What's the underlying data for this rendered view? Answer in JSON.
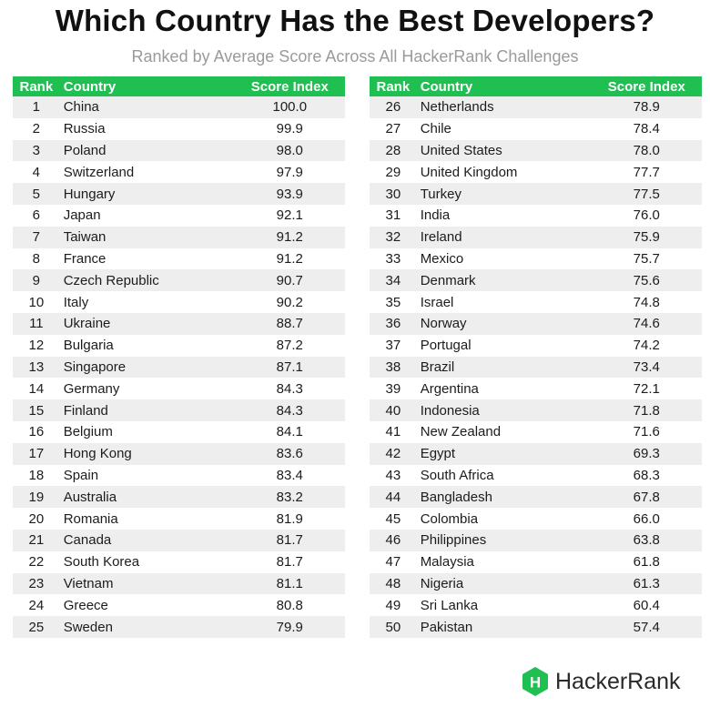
{
  "chart_data": {
    "type": "table",
    "title": "Which Country Has the Best Developers?",
    "subtitle": "Ranked by Average Score Across All HackerRank Challenges",
    "columns": [
      "Rank",
      "Country",
      "Score Index"
    ],
    "rows": [
      [
        1,
        "China",
        "100.0"
      ],
      [
        2,
        "Russia",
        "99.9"
      ],
      [
        3,
        "Poland",
        "98.0"
      ],
      [
        4,
        "Switzerland",
        "97.9"
      ],
      [
        5,
        "Hungary",
        "93.9"
      ],
      [
        6,
        "Japan",
        "92.1"
      ],
      [
        7,
        "Taiwan",
        "91.2"
      ],
      [
        8,
        "France",
        "91.2"
      ],
      [
        9,
        "Czech Republic",
        "90.7"
      ],
      [
        10,
        "Italy",
        "90.2"
      ],
      [
        11,
        "Ukraine",
        "88.7"
      ],
      [
        12,
        "Bulgaria",
        "87.2"
      ],
      [
        13,
        "Singapore",
        "87.1"
      ],
      [
        14,
        "Germany",
        "84.3"
      ],
      [
        15,
        "Finland",
        "84.3"
      ],
      [
        16,
        "Belgium",
        "84.1"
      ],
      [
        17,
        "Hong Kong",
        "83.6"
      ],
      [
        18,
        "Spain",
        "83.4"
      ],
      [
        19,
        "Australia",
        "83.2"
      ],
      [
        20,
        "Romania",
        "81.9"
      ],
      [
        21,
        "Canada",
        "81.7"
      ],
      [
        22,
        "South Korea",
        "81.7"
      ],
      [
        23,
        "Vietnam",
        "81.1"
      ],
      [
        24,
        "Greece",
        "80.8"
      ],
      [
        25,
        "Sweden",
        "79.9"
      ],
      [
        26,
        "Netherlands",
        "78.9"
      ],
      [
        27,
        "Chile",
        "78.4"
      ],
      [
        28,
        "United States",
        "78.0"
      ],
      [
        29,
        "United Kingdom",
        "77.7"
      ],
      [
        30,
        "Turkey",
        "77.5"
      ],
      [
        31,
        "India",
        "76.0"
      ],
      [
        32,
        "Ireland",
        "75.9"
      ],
      [
        33,
        "Mexico",
        "75.7"
      ],
      [
        34,
        "Denmark",
        "75.6"
      ],
      [
        35,
        "Israel",
        "74.8"
      ],
      [
        36,
        "Norway",
        "74.6"
      ],
      [
        37,
        "Portugal",
        "74.2"
      ],
      [
        38,
        "Brazil",
        "73.4"
      ],
      [
        39,
        "Argentina",
        "72.1"
      ],
      [
        40,
        "Indonesia",
        "71.8"
      ],
      [
        41,
        "New Zealand",
        "71.6"
      ],
      [
        42,
        "Egypt",
        "69.3"
      ],
      [
        43,
        "South Africa",
        "68.3"
      ],
      [
        44,
        "Bangladesh",
        "67.8"
      ],
      [
        45,
        "Colombia",
        "66.0"
      ],
      [
        46,
        "Philippines",
        "63.8"
      ],
      [
        47,
        "Malaysia",
        "61.8"
      ],
      [
        48,
        "Nigeria",
        "61.3"
      ],
      [
        49,
        "Sri Lanka",
        "60.4"
      ],
      [
        50,
        "Pakistan",
        "57.4"
      ]
    ]
  },
  "branding": {
    "name": "HackerRank",
    "logo_letter": "H",
    "logo_icon": "hackerrank-hexagon-icon"
  },
  "colors": {
    "header_green": "#1fbf52",
    "row_stripe": "#eeeeee",
    "subtitle_gray": "#9a9a9a"
  }
}
